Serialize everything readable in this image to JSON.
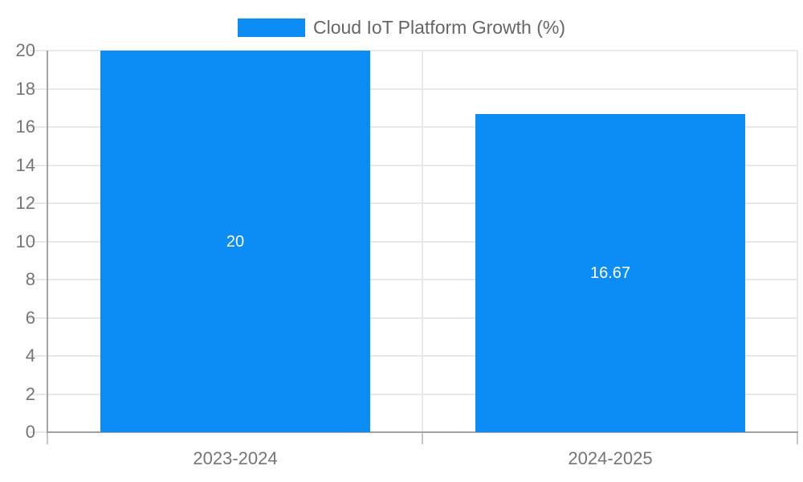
{
  "legend": {
    "label": "Cloud IoT Platform Growth (%)"
  },
  "chart_data": {
    "type": "bar",
    "title": "Cloud IoT Platform Growth (%)",
    "categories": [
      "2023-2024",
      "2024-2025"
    ],
    "values": [
      20,
      16.67
    ],
    "value_labels": [
      "20",
      "16.67"
    ],
    "xlabel": "",
    "ylabel": "",
    "ylim": [
      0,
      20
    ],
    "ytick_step": 2,
    "ytick_labels": [
      "0",
      "2",
      "4",
      "6",
      "8",
      "10",
      "12",
      "14",
      "16",
      "18",
      "20"
    ],
    "grid": true,
    "legend_position": "top-center",
    "colors": {
      "bar": "#0b8df5",
      "value_label": "#ffffff",
      "axis_text": "#757575",
      "legend_text": "#666666",
      "gridline": "#e8e8e8",
      "axis_line": "#a3a3a3",
      "tick_below_axis": "#c6c6c6",
      "background": "#ffffff"
    }
  }
}
